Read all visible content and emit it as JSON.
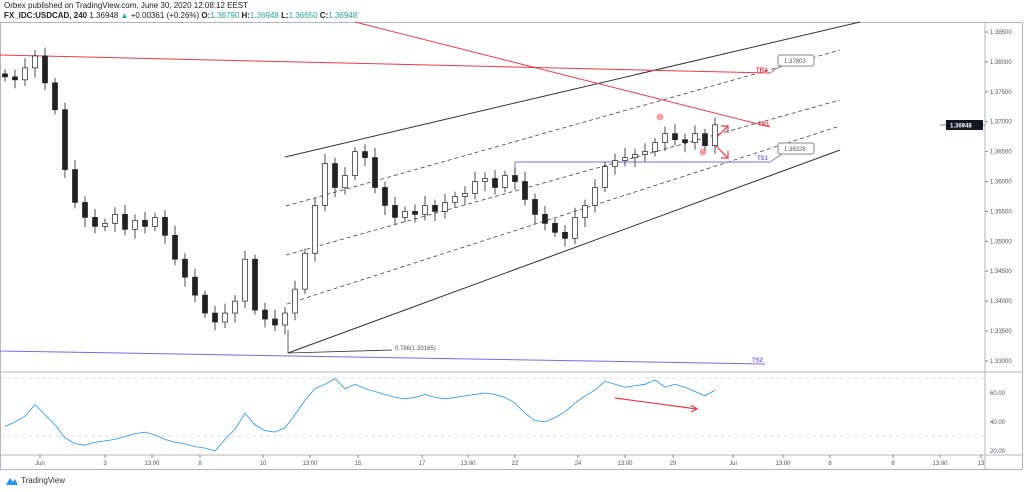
{
  "header": {
    "publisher_line": "Orbex published on TradingView.com, June 30, 2020 12:08:12 EEST",
    "symbol": "FX_IDC:USDCAD, 240",
    "last": "1.36948",
    "change": "+0.00361 (+0.26%)",
    "o_label": "O:",
    "o": "1.36790",
    "h_label": "H:",
    "h": "1.36948",
    "l_label": "L:",
    "l": "1.36650",
    "c_label": "C:",
    "c": "1.36948"
  },
  "price_axis": [
    "1.38500",
    "1.38000",
    "1.37500",
    "1.37000",
    "1.36500",
    "1.36000",
    "1.35500",
    "1.35000",
    "1.34500",
    "1.34000",
    "1.33500",
    "1.33000"
  ],
  "current_price": "1.36948",
  "rsi_axis": [
    "60.00",
    "40.00",
    "20.00"
  ],
  "time_axis": [
    "Jun",
    "3",
    "13:00",
    "8",
    "10",
    "13:00",
    "15",
    "17",
    "13:00",
    "22",
    "24",
    "13:00",
    "29",
    "Jul",
    "13:00",
    "6",
    "8",
    "13:00",
    "13"
  ],
  "annotations": {
    "tr2": "TR2",
    "tr1": "TR1",
    "ts1": "TS1",
    "ts2": "TS2",
    "callout_top": "1.37803",
    "callout_bottom": "1.36326",
    "fib": "0.786(1.33165)"
  },
  "colors": {
    "up": "#ffffff",
    "down": "#222222",
    "resistance": "#f23645",
    "support": "#7b68ee",
    "rsi": "#2196f3"
  },
  "chart_data": {
    "type": "candlestick",
    "ylim": [
      1.3275,
      1.3875
    ],
    "closes": [
      1.3775,
      1.377,
      1.379,
      1.381,
      1.3765,
      1.372,
      1.362,
      1.3565,
      1.354,
      1.3525,
      1.353,
      1.3545,
      1.352,
      1.3535,
      1.3525,
      1.354,
      1.351,
      1.347,
      1.344,
      1.341,
      1.338,
      1.3365,
      1.338,
      1.34,
      1.347,
      1.3385,
      1.337,
      1.336,
      1.338,
      1.342,
      1.348,
      1.356,
      1.363,
      1.359,
      1.361,
      1.365,
      1.364,
      1.359,
      1.356,
      1.354,
      1.355,
      1.3545,
      1.356,
      1.355,
      1.3565,
      1.3575,
      1.358,
      1.36,
      1.3605,
      1.359,
      1.361,
      1.36,
      1.357,
      1.3545,
      1.353,
      1.3515,
      1.3505,
      1.354,
      1.356,
      1.359,
      1.3625,
      1.3635,
      1.364,
      1.3645,
      1.365,
      1.3665,
      1.368,
      1.367,
      1.3665,
      1.368,
      1.366,
      1.36948
    ],
    "rsi": {
      "ylim": [
        15,
        80
      ],
      "levels": [
        70,
        30
      ],
      "values": [
        37,
        40,
        44,
        52,
        45,
        38,
        29,
        25,
        24,
        26,
        27,
        28,
        30,
        32,
        33,
        31,
        28,
        26,
        25,
        23,
        22,
        20,
        28,
        35,
        46,
        38,
        34,
        33,
        36,
        45,
        55,
        63,
        66,
        70,
        63,
        66,
        63,
        61,
        59,
        57,
        56,
        57,
        59,
        57,
        56,
        57,
        58,
        59,
        60,
        59,
        57,
        53,
        46,
        41,
        40,
        43,
        47,
        53,
        58,
        62,
        68,
        66,
        64,
        65,
        66,
        69,
        64,
        66,
        64,
        61,
        58,
        62
      ]
    }
  }
}
